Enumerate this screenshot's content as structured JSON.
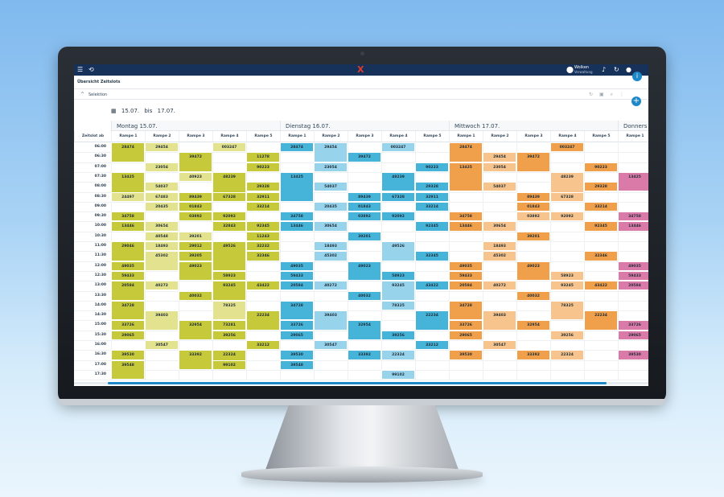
{
  "header": {
    "logo": "X",
    "location_name": "Wolken",
    "location_sub": "Verwaltung",
    "page_title": "Übersicht Zeitslots"
  },
  "selection": {
    "label": "Selektion"
  },
  "date_range": {
    "from": "15.07.",
    "sep": "bis",
    "to": "17.07."
  },
  "time_column_header": "Zeitslot ab",
  "days": [
    {
      "label": "Montag 15.07.",
      "ramps": [
        "Rampe 1",
        "Rampe 2",
        "Rampe 3",
        "Rampe 4",
        "Rampe 5"
      ]
    },
    {
      "label": "Dienstag 16.07.",
      "ramps": [
        "Rampe 1",
        "Rampe 2",
        "Rampe 3",
        "Rampe 4",
        "Rampe 5"
      ]
    },
    {
      "label": "Mittwoch 17.07.",
      "ramps": [
        "Rampe 1",
        "Rampe 2",
        "Rampe 3",
        "Rampe 4",
        "Rampe 5"
      ]
    },
    {
      "label": "Donners",
      "ramps": [
        "Rampe 1"
      ]
    }
  ],
  "times": [
    "06:00",
    "06:30",
    "07:00",
    "07:30",
    "08:00",
    "08:30",
    "09:00",
    "09:30",
    "10:00",
    "10:30",
    "11:00",
    "11:30",
    "12:00",
    "12:30",
    "13:00",
    "13:30",
    "14:00",
    "14:30",
    "15:00",
    "15:30",
    "16:00",
    "16:30",
    "17:00",
    "17:30"
  ],
  "palettes": {
    "mon": [
      "#c6c93a",
      "#e3e38f"
    ],
    "tue": [
      "#46b4d8",
      "#97d3ea"
    ],
    "wed": [
      "#f0a04b",
      "#f6c48c"
    ],
    "thu": [
      "#d97aa8",
      "#e9a9c8"
    ]
  },
  "columns": [
    [
      [
        "28474",
        0,
        2,
        0
      ],
      [
        "13425",
        3,
        3,
        0
      ],
      [
        "24497",
        5,
        1,
        1
      ],
      [
        "34758",
        7,
        1,
        0
      ],
      [
        "13446",
        8,
        1,
        0
      ],
      [
        "29046",
        10,
        2,
        0
      ],
      [
        "49035",
        12,
        1,
        0
      ],
      [
        "59433",
        13,
        1,
        0
      ],
      [
        "20584",
        14,
        2,
        0
      ],
      [
        "34728",
        16,
        2,
        0
      ],
      [
        "33726",
        18,
        1,
        0
      ],
      [
        "29065",
        19,
        1,
        0
      ],
      [
        "39530",
        21,
        1,
        0
      ],
      [
        "39548",
        22,
        2,
        0
      ]
    ],
    [
      [
        "29454",
        0,
        1,
        1
      ],
      [
        "23054",
        2,
        1,
        1
      ],
      [
        "54037",
        4,
        1,
        1
      ],
      [
        "67483",
        5,
        1,
        1
      ],
      [
        "20435",
        6,
        1,
        1
      ],
      [
        "30654",
        8,
        1,
        1
      ],
      [
        "40548",
        9,
        1,
        1
      ],
      [
        "18493",
        10,
        1,
        1
      ],
      [
        "45302",
        11,
        2,
        1
      ],
      [
        "40272",
        14,
        1,
        1
      ],
      [
        "39403",
        17,
        2,
        1
      ],
      [
        "30547",
        20,
        1,
        1
      ]
    ],
    [
      [
        "39472",
        1,
        2,
        0
      ],
      [
        "40923",
        3,
        1,
        1
      ],
      [
        "89439",
        5,
        1,
        0
      ],
      [
        "01843",
        6,
        1,
        0
      ],
      [
        "03892",
        7,
        1,
        0
      ],
      [
        "39201",
        9,
        1,
        1
      ],
      [
        "29012",
        10,
        1,
        0
      ],
      [
        "39205",
        11,
        1,
        0
      ],
      [
        "49023",
        12,
        2,
        0
      ],
      [
        "40032",
        15,
        1,
        0
      ],
      [
        "32954",
        18,
        2,
        0
      ],
      [
        "33392",
        21,
        2,
        0
      ]
    ],
    [
      [
        "003247",
        0,
        1,
        1
      ],
      [
        "48239",
        3,
        3,
        0
      ],
      [
        "67328",
        5,
        1,
        0
      ],
      [
        "92092",
        7,
        1,
        0
      ],
      [
        "32843",
        8,
        1,
        0
      ],
      [
        "49526",
        10,
        3,
        0
      ],
      [
        "58923",
        13,
        1,
        0
      ],
      [
        "93245",
        14,
        2,
        0
      ],
      [
        "78325",
        16,
        2,
        1
      ],
      [
        "73281",
        18,
        1,
        0
      ],
      [
        "39256",
        19,
        1,
        0
      ],
      [
        "22324",
        21,
        2,
        0
      ],
      [
        "99102",
        22,
        1,
        0
      ]
    ],
    [
      [
        "11278",
        1,
        1,
        0
      ],
      [
        "90223",
        2,
        1,
        0
      ],
      [
        "29328",
        4,
        1,
        0
      ],
      [
        "32911",
        5,
        1,
        0
      ],
      [
        "33214",
        6,
        1,
        0
      ],
      [
        "92345",
        8,
        1,
        0
      ],
      [
        "11243",
        9,
        1,
        0
      ],
      [
        "32232",
        10,
        1,
        0
      ],
      [
        "32346",
        11,
        1,
        0
      ],
      [
        "43422",
        14,
        1,
        0
      ],
      [
        "22234",
        17,
        2,
        0
      ],
      [
        "33212",
        20,
        1,
        0
      ]
    ],
    [
      [
        "28474",
        0,
        1,
        0
      ],
      [
        "13425",
        3,
        3,
        0
      ],
      [
        "34758",
        7,
        1,
        0
      ],
      [
        "13446",
        8,
        1,
        0
      ],
      [
        "49035",
        12,
        1,
        0
      ],
      [
        "59433",
        13,
        1,
        0
      ],
      [
        "20584",
        14,
        1,
        0
      ],
      [
        "34728",
        16,
        2,
        0
      ],
      [
        "33726",
        18,
        1,
        0
      ],
      [
        "29065",
        19,
        1,
        0
      ],
      [
        "39530",
        21,
        1,
        0
      ],
      [
        "39548",
        22,
        1,
        0
      ]
    ],
    [
      [
        "29454",
        0,
        2,
        1
      ],
      [
        "23054",
        2,
        1,
        1
      ],
      [
        "54037",
        4,
        1,
        1
      ],
      [
        "20435",
        6,
        1,
        1
      ],
      [
        "30654",
        8,
        1,
        1
      ],
      [
        "18493",
        10,
        1,
        1
      ],
      [
        "45302",
        11,
        1,
        1
      ],
      [
        "40272",
        14,
        1,
        1
      ],
      [
        "39403",
        17,
        2,
        1
      ],
      [
        "30547",
        20,
        1,
        1
      ]
    ],
    [
      [
        "39472",
        1,
        1,
        0
      ],
      [
        "89439",
        5,
        1,
        0
      ],
      [
        "01843",
        6,
        1,
        0
      ],
      [
        "03892",
        7,
        1,
        0
      ],
      [
        "39201",
        9,
        1,
        0
      ],
      [
        "49023",
        12,
        2,
        0
      ],
      [
        "40032",
        15,
        1,
        0
      ],
      [
        "32954",
        18,
        2,
        0
      ],
      [
        "33392",
        21,
        1,
        0
      ]
    ],
    [
      [
        "003247",
        0,
        1,
        1
      ],
      [
        "48239",
        3,
        2,
        0
      ],
      [
        "67328",
        5,
        1,
        0
      ],
      [
        "92092",
        7,
        1,
        0
      ],
      [
        "49526",
        10,
        2,
        1
      ],
      [
        "58923",
        13,
        1,
        0
      ],
      [
        "93245",
        14,
        2,
        1
      ],
      [
        "78325",
        16,
        1,
        1
      ],
      [
        "39256",
        19,
        1,
        0
      ],
      [
        "22324",
        21,
        1,
        1
      ],
      [
        "99102",
        23,
        1,
        1
      ]
    ],
    [
      [
        "90223",
        2,
        1,
        0
      ],
      [
        "29328",
        4,
        1,
        0
      ],
      [
        "32911",
        5,
        1,
        0
      ],
      [
        "33214",
        6,
        1,
        0
      ],
      [
        "92345",
        8,
        1,
        0
      ],
      [
        "32345",
        11,
        1,
        0
      ],
      [
        "43422",
        14,
        1,
        0
      ],
      [
        "22234",
        17,
        2,
        0
      ],
      [
        "33212",
        20,
        1,
        0
      ]
    ],
    [
      [
        "28474",
        0,
        2,
        0
      ],
      [
        "13425",
        2,
        3,
        0
      ],
      [
        "34758",
        7,
        1,
        0
      ],
      [
        "13446",
        8,
        1,
        0
      ],
      [
        "49035",
        12,
        1,
        0
      ],
      [
        "59433",
        13,
        1,
        0
      ],
      [
        "20584",
        14,
        1,
        0
      ],
      [
        "34728",
        16,
        2,
        0
      ],
      [
        "33726",
        18,
        1,
        0
      ],
      [
        "29065",
        19,
        1,
        0
      ],
      [
        "39530",
        21,
        1,
        0
      ]
    ],
    [
      [
        "29454",
        1,
        1,
        1
      ],
      [
        "23054",
        2,
        1,
        1
      ],
      [
        "54037",
        4,
        1,
        1
      ],
      [
        "30654",
        8,
        1,
        1
      ],
      [
        "18493",
        10,
        1,
        1
      ],
      [
        "45302",
        11,
        1,
        1
      ],
      [
        "40272",
        14,
        1,
        1
      ],
      [
        "39403",
        17,
        2,
        1
      ],
      [
        "30547",
        20,
        1,
        1
      ]
    ],
    [
      [
        "39472",
        1,
        2,
        0
      ],
      [
        "89439",
        5,
        1,
        0
      ],
      [
        "01843",
        6,
        1,
        0
      ],
      [
        "03892",
        7,
        1,
        1
      ],
      [
        "39201",
        9,
        1,
        0
      ],
      [
        "49023",
        12,
        2,
        0
      ],
      [
        "40032",
        15,
        1,
        0
      ],
      [
        "32954",
        18,
        1,
        0
      ],
      [
        "33392",
        21,
        1,
        0
      ]
    ],
    [
      [
        "003247",
        0,
        1,
        0
      ],
      [
        "48239",
        3,
        3,
        1
      ],
      [
        "67328",
        5,
        1,
        1
      ],
      [
        "92092",
        7,
        1,
        1
      ],
      [
        "58923",
        13,
        1,
        1
      ],
      [
        "93245",
        14,
        1,
        1
      ],
      [
        "78325",
        16,
        2,
        1
      ],
      [
        "39256",
        19,
        1,
        1
      ],
      [
        "22324",
        21,
        1,
        1
      ]
    ],
    [
      [
        "90223",
        2,
        1,
        0
      ],
      [
        "29328",
        4,
        1,
        0
      ],
      [
        "33214",
        6,
        1,
        0
      ],
      [
        "92345",
        8,
        1,
        0
      ],
      [
        "32346",
        11,
        1,
        0
      ],
      [
        "43422",
        14,
        1,
        0
      ],
      [
        "22234",
        17,
        2,
        0
      ]
    ],
    [
      [
        "13425",
        3,
        2,
        0
      ],
      [
        "34758",
        7,
        1,
        0
      ],
      [
        "13446",
        8,
        1,
        0
      ],
      [
        "49035",
        12,
        1,
        0
      ],
      [
        "59433",
        13,
        1,
        0
      ],
      [
        "20584",
        14,
        1,
        0
      ],
      [
        "33726",
        18,
        1,
        0
      ],
      [
        "29065",
        19,
        1,
        0
      ],
      [
        "39530",
        21,
        1,
        0
      ]
    ]
  ]
}
